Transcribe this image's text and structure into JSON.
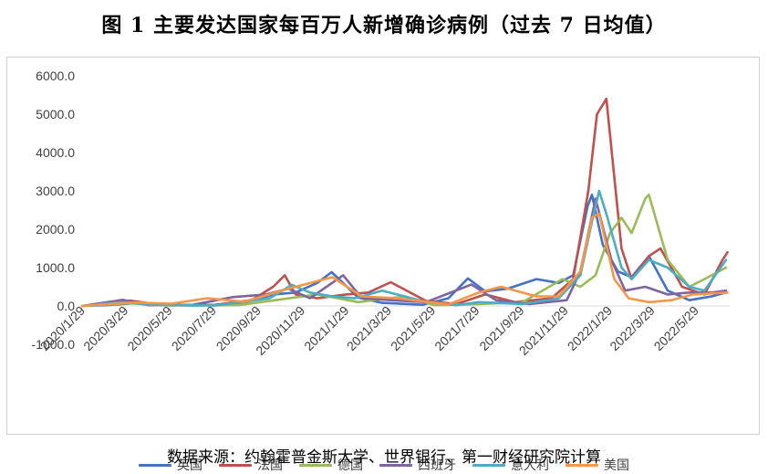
{
  "title": "图 1  主要发达国家每百万人新增确诊病例（过去 7 日均值）",
  "source": "数据来源：约翰霍普金斯大学、世界银行、第一财经研究院计算",
  "chart_data": {
    "type": "line",
    "title": "图 1  主要发达国家每百万人新增确诊病例（过去 7 日均值）",
    "xlabel": "",
    "ylabel": "",
    "ylim": [
      -1000,
      6000
    ],
    "yticks": [
      -1000,
      0,
      1000,
      2000,
      3000,
      4000,
      5000,
      6000
    ],
    "ytick_labels": [
      "-1000.0",
      "0.0",
      "1000.0",
      "2000.0",
      "3000.0",
      "4000.0",
      "5000.0",
      "6000.0"
    ],
    "xlim": [
      "2020-01-29",
      "2022-07-15"
    ],
    "xticks": [
      "2020-01-29",
      "2020-03-29",
      "2020-05-29",
      "2020-07-29",
      "2020-09-29",
      "2020-11-29",
      "2021-01-29",
      "2021-03-29",
      "2021-05-29",
      "2021-07-29",
      "2021-09-29",
      "2021-11-29",
      "2022-01-29",
      "2022-03-29",
      "2022-05-29"
    ],
    "xtick_labels": [
      "2020/1/29",
      "2020/3/29",
      "2020/5/29",
      "2020/7/29",
      "2020/9/29",
      "2020/11/29",
      "2021/1/29",
      "2021/3/29",
      "2021/5/29",
      "2021/7/29",
      "2021/9/29",
      "2021/11/29",
      "2022/1/29",
      "2022/3/29",
      "2022/5/29"
    ],
    "grid": false,
    "legend_position": "bottom",
    "series": [
      {
        "name": "英国",
        "color": "#4472C4",
        "x": [
          "2020-01-29",
          "2020-03-01",
          "2020-04-10",
          "2020-05-20",
          "2020-07-01",
          "2020-09-01",
          "2020-10-20",
          "2020-11-20",
          "2020-12-20",
          "2021-01-09",
          "2021-02-15",
          "2021-03-20",
          "2021-05-15",
          "2021-06-20",
          "2021-07-17",
          "2021-08-10",
          "2021-09-10",
          "2021-10-20",
          "2021-11-20",
          "2021-12-10",
          "2021-12-30",
          "2022-01-05",
          "2022-01-20",
          "2022-02-10",
          "2022-03-01",
          "2022-03-25",
          "2022-04-20",
          "2022-05-20",
          "2022-06-20",
          "2022-07-10"
        ],
        "y": [
          0,
          20,
          70,
          30,
          10,
          40,
          300,
          350,
          600,
          880,
          220,
          80,
          30,
          200,
          720,
          380,
          450,
          700,
          600,
          800,
          2600,
          2900,
          1600,
          900,
          750,
          1300,
          400,
          150,
          250,
          350
        ]
      },
      {
        "name": "法国",
        "color": "#C0504D",
        "x": [
          "2020-01-29",
          "2020-03-20",
          "2020-04-05",
          "2020-05-20",
          "2020-08-01",
          "2020-09-20",
          "2020-10-20",
          "2020-11-05",
          "2020-11-20",
          "2020-12-20",
          "2021-01-29",
          "2021-03-01",
          "2021-04-01",
          "2021-05-20",
          "2021-07-01",
          "2021-08-10",
          "2021-09-20",
          "2021-11-10",
          "2021-12-10",
          "2021-12-31",
          "2022-01-12",
          "2022-01-25",
          "2022-02-15",
          "2022-03-01",
          "2022-03-25",
          "2022-04-10",
          "2022-05-10",
          "2022-06-10",
          "2022-07-05",
          "2022-07-12"
        ],
        "y": [
          0,
          100,
          140,
          20,
          30,
          150,
          500,
          800,
          300,
          200,
          300,
          350,
          620,
          130,
          50,
          300,
          100,
          200,
          700,
          3000,
          5000,
          5400,
          1500,
          700,
          1300,
          1500,
          500,
          300,
          1200,
          1400
        ]
      },
      {
        "name": "德国",
        "color": "#9BBB59",
        "x": [
          "2020-01-29",
          "2020-04-01",
          "2020-06-01",
          "2020-09-01",
          "2020-12-20",
          "2021-02-15",
          "2021-04-20",
          "2021-06-01",
          "2021-08-01",
          "2021-10-01",
          "2021-11-25",
          "2021-12-20",
          "2022-01-10",
          "2022-01-30",
          "2022-02-15",
          "2022-03-01",
          "2022-03-20",
          "2022-03-25",
          "2022-04-20",
          "2022-05-20",
          "2022-06-10",
          "2022-07-10"
        ],
        "y": [
          0,
          70,
          10,
          20,
          300,
          100,
          250,
          20,
          50,
          100,
          700,
          500,
          800,
          1900,
          2300,
          1900,
          2800,
          2900,
          1200,
          500,
          700,
          1000
        ]
      },
      {
        "name": "西班牙",
        "color": "#8064A2",
        "x": [
          "2020-01-29",
          "2020-03-25",
          "2020-05-01",
          "2020-07-01",
          "2020-08-25",
          "2020-10-10",
          "2020-11-10",
          "2020-12-10",
          "2021-01-25",
          "2021-02-20",
          "2021-04-01",
          "2021-05-20",
          "2021-07-22",
          "2021-08-25",
          "2021-10-10",
          "2021-12-01",
          "2021-12-20",
          "2022-01-10",
          "2022-02-01",
          "2022-02-20",
          "2022-03-20",
          "2022-04-20",
          "2022-05-20",
          "2022-06-20",
          "2022-07-10"
        ],
        "y": [
          0,
          160,
          20,
          30,
          230,
          300,
          450,
          200,
          800,
          200,
          150,
          100,
          560,
          150,
          50,
          150,
          900,
          2800,
          1200,
          400,
          500,
          300,
          350,
          350,
          400
        ]
      },
      {
        "name": "意大利",
        "color": "#4BACC6",
        "x": [
          "2020-01-29",
          "2020-03-25",
          "2020-05-01",
          "2020-08-01",
          "2020-10-15",
          "2020-11-15",
          "2020-12-10",
          "2021-01-10",
          "2021-02-10",
          "2021-03-20",
          "2021-04-20",
          "2021-05-20",
          "2021-07-01",
          "2021-08-01",
          "2021-10-01",
          "2021-11-20",
          "2021-12-20",
          "2022-01-05",
          "2022-01-15",
          "2022-01-25",
          "2022-02-15",
          "2022-03-01",
          "2022-03-25",
          "2022-04-20",
          "2022-05-20",
          "2022-06-10",
          "2022-07-10"
        ],
        "y": [
          0,
          100,
          30,
          10,
          200,
          550,
          350,
          250,
          200,
          400,
          250,
          100,
          20,
          100,
          50,
          200,
          800,
          2200,
          3000,
          2400,
          1000,
          700,
          1200,
          1000,
          500,
          400,
          1200
        ]
      },
      {
        "name": "美国",
        "color": "#F79646",
        "x": [
          "2020-01-29",
          "2020-04-10",
          "2020-06-01",
          "2020-07-20",
          "2020-09-10",
          "2020-11-10",
          "2021-01-10",
          "2021-02-20",
          "2021-04-10",
          "2021-06-20",
          "2021-08-01",
          "2021-09-01",
          "2021-10-20",
          "2021-11-20",
          "2021-12-20",
          "2022-01-05",
          "2022-01-15",
          "2022-02-05",
          "2022-02-25",
          "2022-03-25",
          "2022-04-25",
          "2022-05-25",
          "2022-06-25",
          "2022-07-12"
        ],
        "y": [
          0,
          90,
          60,
          200,
          110,
          450,
          750,
          250,
          200,
          40,
          350,
          500,
          250,
          250,
          900,
          2300,
          2400,
          700,
          200,
          100,
          150,
          300,
          330,
          350
        ]
      }
    ]
  }
}
